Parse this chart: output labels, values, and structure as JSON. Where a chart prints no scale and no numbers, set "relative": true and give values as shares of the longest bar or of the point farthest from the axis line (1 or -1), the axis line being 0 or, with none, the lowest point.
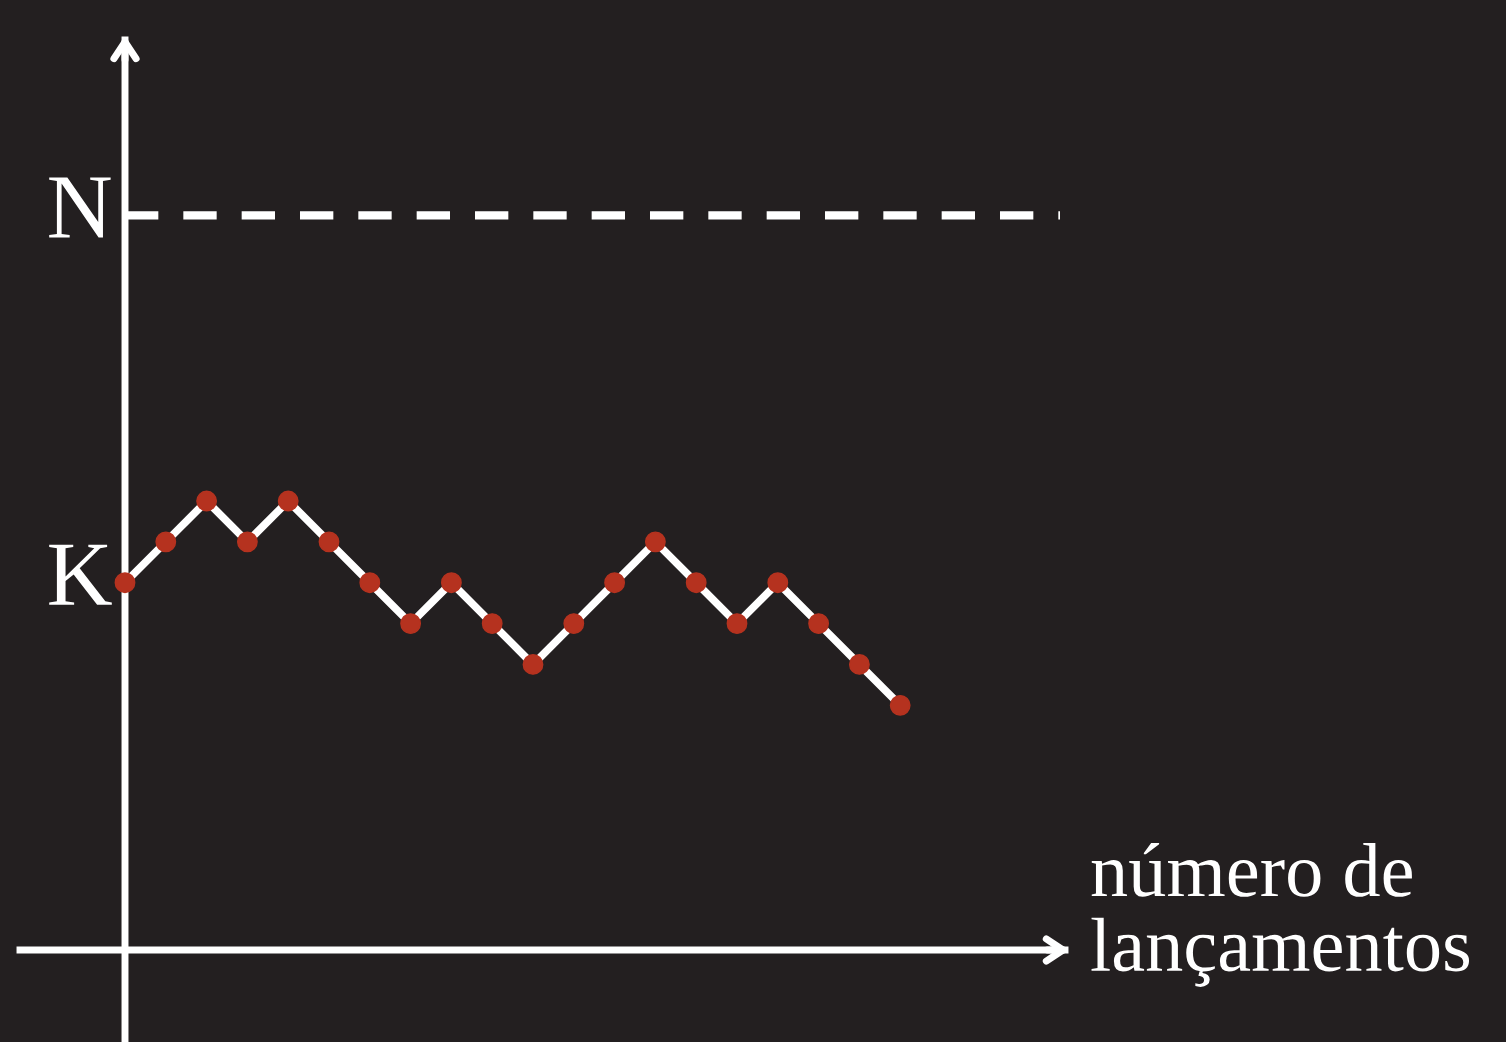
{
  "chart_data": {
    "type": "line",
    "relative": true,
    "xlabel": "número de lançamentos",
    "categories": [
      null,
      null,
      null,
      null,
      null,
      null,
      null,
      null,
      null,
      null,
      null,
      null,
      null,
      null,
      null,
      null,
      null,
      null,
      null,
      null
    ],
    "series": [
      {
        "color": "#ffffff",
        "values": [
          0.818,
          0.909,
          1,
          0.909,
          1,
          0.909,
          0.818,
          0.727,
          0.818,
          0.727,
          0.636,
          0.727,
          0.818,
          0.909,
          0.818,
          0.727,
          0.818,
          0.727,
          0.636,
          0.545
        ]
      }
    ],
    "marker": "circle",
    "line_style": "solid",
    "ref_lines": [
      {
        "axis": "y",
        "value": 1.636,
        "label": "N",
        "color": "#ffffff",
        "line_style": "dashed"
      }
    ],
    "annotations": [
      "K"
    ]
  }
}
